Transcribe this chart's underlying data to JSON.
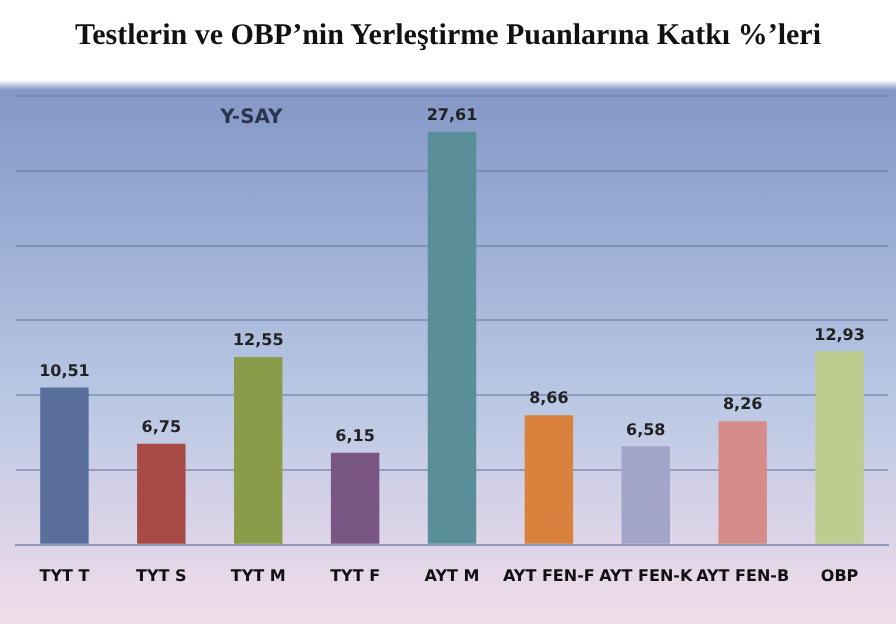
{
  "chart_data": {
    "type": "bar",
    "title": "Testlerin ve OBP’nin Yerleştirme Puanlarına Katkı %’leri",
    "subtitle": "Y-SAY",
    "categories": [
      "TYT T",
      "TYT S",
      "TYT M",
      "TYT F",
      "AYT M",
      "AYT FEN-F",
      "AYT FEN-K",
      "AYT FEN-B",
      "OBP"
    ],
    "values": [
      10.51,
      6.75,
      12.55,
      6.15,
      27.61,
      8.66,
      6.58,
      8.26,
      12.93
    ],
    "value_labels": [
      "10,51",
      "6,75",
      "12,55",
      "6,15",
      "27,61",
      "8,66",
      "6,58",
      "8,26",
      "12,93"
    ],
    "colors": [
      "#5a6e9c",
      "#a84a45",
      "#8a9c4a",
      "#7a5684",
      "#5a8e98",
      "#d8823e",
      "#a3a5c8",
      "#d68c88",
      "#bfcc90"
    ],
    "ylim": [
      0,
      30
    ],
    "yticks": [
      {
        "value": 0,
        "label": null
      },
      {
        "value": 5,
        "label": null
      },
      {
        "value": 10,
        "label": null
      },
      {
        "value": 15,
        "label": null
      },
      {
        "value": 20,
        "label": null
      },
      {
        "value": 25,
        "label": null
      },
      {
        "value": 30,
        "label": null
      }
    ],
    "grid": "y",
    "tick_labels": "x"
  }
}
